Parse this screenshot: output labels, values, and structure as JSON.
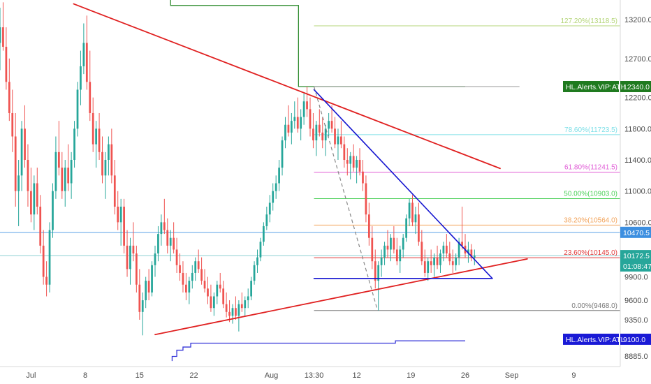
{
  "chart_data": {
    "type": "candlestick",
    "instrument_note": "",
    "y_axis": {
      "range": [
        8750,
        13450
      ],
      "ticks": [
        13200.0,
        12700.0,
        12200.0,
        11800.0,
        11400.0,
        11000.0,
        10600.0,
        9900.0,
        9600.0,
        9350.0,
        8885.0
      ],
      "tick_labels": [
        "13200.0",
        "12700.0",
        "12200.0",
        "11800.0",
        "11400.0",
        "11000.0",
        "10600.0",
        "9900.0",
        "9600.0",
        "9350.0",
        "8885.0"
      ]
    },
    "x_axis": {
      "labels": [
        {
          "text": "Jul",
          "day": 0
        },
        {
          "text": "8",
          "day": 7
        },
        {
          "text": "15",
          "day": 14
        },
        {
          "text": "22",
          "day": 21
        },
        {
          "text": "Aug",
          "day": 31
        },
        {
          "text": "13:30",
          "day": 36.5
        },
        {
          "text": "12",
          "day": 42
        },
        {
          "text": "19",
          "day": 49
        },
        {
          "text": "26",
          "day": 56
        },
        {
          "text": "Sep",
          "day": 62
        },
        {
          "text": "9",
          "day": 70
        }
      ],
      "range": [
        -4,
        76
      ]
    },
    "fibonacci": [
      {
        "label": "127.20%(13118.5)",
        "value": 13118.5,
        "color": "#b5d67a"
      },
      {
        "label": "78.60%(11723.5)",
        "value": 11723.5,
        "color": "#7fe0e8"
      },
      {
        "label": "61.80%(11241.5)",
        "value": 11241.5,
        "color": "#e05cd6"
      },
      {
        "label": "50.00%(10903.0)",
        "value": 10903.0,
        "color": "#4cd05a"
      },
      {
        "label": "38.20%(10564.0)",
        "value": 10564.0,
        "color": "#f2a35a"
      },
      {
        "label": "23.60%(10145.0)",
        "value": 10145.0,
        "color": "#e03a3a"
      },
      {
        "label": "0.00%(9468.0)",
        "value": 9468.0,
        "color": "#787878"
      }
    ],
    "fib_range_days": [
      36.5,
      63
    ],
    "fib_top": {
      "value": 12340,
      "color": "#9a9a9a"
    },
    "price_tags": [
      {
        "label": "HL.Alerts.VIP:ATH",
        "value_text": "12340.0",
        "value": 12340,
        "color": "#1f7a1f"
      },
      {
        "label": "",
        "value_text": "10470.5",
        "value": 10470.5,
        "color": "#3d8fe0"
      },
      {
        "label": "",
        "value_text": "10172.5",
        "value": 10172.5,
        "color": "#26a69a"
      },
      {
        "label": "",
        "value_text": "01:08:47",
        "value": 10040,
        "color": "#26a69a"
      },
      {
        "label": "HL.Alerts.VIP:ATL",
        "value_text": "9100.0",
        "value": 9100,
        "color": "#1a1ad6"
      }
    ],
    "horizontal_lines": [
      {
        "value": 10470.5,
        "color": "#5aa0e6"
      },
      {
        "value": 10172.5,
        "color": "#8ccfd0"
      }
    ],
    "ath_step_line": {
      "color": "#2e8b2e",
      "points": [
        [
          18,
          13480
        ],
        [
          18,
          13380
        ],
        [
          34.5,
          13380
        ],
        [
          34.5,
          12340
        ],
        [
          56,
          12340
        ]
      ]
    },
    "atl_step_line": {
      "color": "#3535d8",
      "points": [
        [
          18.2,
          8820
        ],
        [
          18.2,
          8880
        ],
        [
          18.8,
          8880
        ],
        [
          18.8,
          8960
        ],
        [
          19.6,
          8960
        ],
        [
          19.6,
          9000
        ],
        [
          20.6,
          9000
        ],
        [
          20.6,
          9050
        ],
        [
          47,
          9050
        ],
        [
          47,
          9080
        ],
        [
          56,
          9080
        ]
      ]
    },
    "trendlines": [
      {
        "name": "upper-red",
        "color": "#e02020",
        "width": 1.8,
        "from": [
          5.5,
          13400
        ],
        "to": [
          60.5,
          11290
        ]
      },
      {
        "name": "lower-red",
        "color": "#e02020",
        "width": 1.8,
        "from": [
          16,
          9160
        ],
        "to": [
          64,
          10130
        ]
      },
      {
        "name": "blue-resistance",
        "color": "#1515d0",
        "width": 1.6,
        "from": [
          36.5,
          12300
        ],
        "to": [
          59.5,
          9880
        ]
      },
      {
        "name": "blue-support",
        "color": "#1515d0",
        "width": 1.6,
        "from": [
          36.5,
          9880
        ],
        "to": [
          59.5,
          9880
        ]
      }
    ],
    "dashed_lines": [
      {
        "color": "#888888",
        "from": [
          36.5,
          12340
        ],
        "to": [
          44.7,
          9468
        ]
      }
    ],
    "candles_ohlc_note": "open/high/low/close sampled per bar",
    "candles": [
      [
        -4,
        12900,
        13350,
        12550,
        13100
      ],
      [
        -3.6,
        13100,
        13420,
        12800,
        12850
      ],
      [
        -3.2,
        12850,
        13100,
        12300,
        12400
      ],
      [
        -2.8,
        12400,
        12700,
        11900,
        12000
      ],
      [
        -2.4,
        12000,
        12300,
        11500,
        11700
      ],
      [
        -2.0,
        11700,
        12000,
        10800,
        11000
      ],
      [
        -1.6,
        11000,
        11400,
        10550,
        11200
      ],
      [
        -1.2,
        11200,
        11900,
        11000,
        11800
      ],
      [
        -0.8,
        11800,
        12100,
        11300,
        11400
      ],
      [
        -0.4,
        11400,
        11600,
        10800,
        11000
      ],
      [
        0,
        11000,
        11300,
        10600,
        10700
      ],
      [
        0.4,
        10700,
        11200,
        10500,
        11100
      ],
      [
        0.8,
        11100,
        11300,
        10700,
        10800
      ],
      [
        1.2,
        10800,
        10950,
        10200,
        10300
      ],
      [
        1.6,
        10300,
        10500,
        9800,
        9900
      ],
      [
        2.0,
        9900,
        10100,
        9650,
        9800
      ],
      [
        2.4,
        9800,
        10600,
        9700,
        10500
      ],
      [
        2.8,
        10500,
        11100,
        10400,
        11000
      ],
      [
        3.2,
        11000,
        11700,
        10900,
        11500
      ],
      [
        3.6,
        11500,
        11900,
        11200,
        11300
      ],
      [
        4.0,
        11300,
        11500,
        10900,
        11000
      ],
      [
        4.4,
        11000,
        11400,
        10800,
        11300
      ],
      [
        4.8,
        11300,
        11600,
        11000,
        11100
      ],
      [
        5.2,
        11100,
        11500,
        10900,
        11400
      ],
      [
        5.6,
        11400,
        11900,
        11300,
        11800
      ],
      [
        6.0,
        11800,
        12400,
        11700,
        12300
      ],
      [
        6.4,
        12300,
        12800,
        12100,
        12600
      ],
      [
        6.8,
        12600,
        13150,
        12500,
        12900
      ],
      [
        7.2,
        12900,
        13250,
        12300,
        12400
      ],
      [
        7.6,
        12400,
        12800,
        11900,
        12000
      ],
      [
        8.0,
        12000,
        12200,
        11500,
        11600
      ],
      [
        8.4,
        11600,
        11900,
        11300,
        11800
      ],
      [
        8.8,
        11800,
        12000,
        11400,
        11500
      ],
      [
        9.2,
        11500,
        11700,
        11100,
        11200
      ],
      [
        9.6,
        11200,
        11500,
        10900,
        11400
      ],
      [
        10.0,
        11400,
        11700,
        11200,
        11600
      ],
      [
        10.4,
        11600,
        11800,
        11100,
        11200
      ],
      [
        10.8,
        11200,
        11400,
        10700,
        10800
      ],
      [
        11.2,
        10800,
        11000,
        10500,
        10600
      ],
      [
        11.6,
        10600,
        10900,
        10300,
        10800
      ],
      [
        12.0,
        10800,
        10900,
        10200,
        10300
      ],
      [
        12.4,
        10300,
        10500,
        9900,
        10000
      ],
      [
        12.8,
        10000,
        10400,
        9800,
        10300
      ],
      [
        13.2,
        10300,
        10600,
        10100,
        10200
      ],
      [
        13.6,
        10200,
        10300,
        9700,
        9800
      ],
      [
        14.0,
        9800,
        10000,
        9350,
        9450
      ],
      [
        14.4,
        9450,
        9700,
        9150,
        9600
      ],
      [
        14.8,
        9600,
        9900,
        9500,
        9850
      ],
      [
        15.2,
        9850,
        10000,
        9600,
        9700
      ],
      [
        15.6,
        9700,
        10100,
        9650,
        10050
      ],
      [
        16.0,
        10050,
        10300,
        9900,
        10200
      ],
      [
        16.4,
        10200,
        10550,
        10100,
        10450
      ],
      [
        16.8,
        10450,
        10700,
        10300,
        10600
      ],
      [
        17.2,
        10600,
        10900,
        10450,
        10500
      ],
      [
        17.6,
        10500,
        10650,
        10200,
        10300
      ],
      [
        18.0,
        10300,
        10500,
        10100,
        10400
      ],
      [
        18.4,
        10400,
        10600,
        10200,
        10250
      ],
      [
        18.8,
        10250,
        10400,
        9950,
        10050
      ],
      [
        19.2,
        10050,
        10200,
        9850,
        9950
      ],
      [
        19.6,
        9950,
        10100,
        9700,
        9800
      ],
      [
        20.0,
        9800,
        9950,
        9600,
        9700
      ],
      [
        20.4,
        9700,
        9900,
        9550,
        9850
      ],
      [
        20.8,
        9850,
        10050,
        9750,
        9950
      ],
      [
        21.2,
        9950,
        10150,
        9850,
        10100
      ],
      [
        21.6,
        10100,
        10250,
        9950,
        10000
      ],
      [
        22.0,
        10000,
        10150,
        9800,
        9850
      ],
      [
        22.4,
        9850,
        10000,
        9700,
        9750
      ],
      [
        22.8,
        9750,
        9900,
        9550,
        9650
      ],
      [
        23.2,
        9650,
        9800,
        9450,
        9500
      ],
      [
        23.6,
        9500,
        9700,
        9400,
        9650
      ],
      [
        24.0,
        9650,
        9850,
        9550,
        9800
      ],
      [
        24.4,
        9800,
        9950,
        9700,
        9750
      ],
      [
        24.8,
        9750,
        9850,
        9500,
        9550
      ],
      [
        25.2,
        9550,
        9700,
        9380,
        9450
      ],
      [
        25.6,
        9450,
        9600,
        9320,
        9400
      ],
      [
        26.0,
        9400,
        9550,
        9300,
        9500
      ],
      [
        26.4,
        9500,
        9650,
        9350,
        9400
      ],
      [
        26.8,
        9400,
        9600,
        9200,
        9550
      ],
      [
        27.2,
        9550,
        9700,
        9450,
        9500
      ],
      [
        27.6,
        9500,
        9650,
        9400,
        9600
      ],
      [
        28.0,
        9600,
        9750,
        9500,
        9650
      ],
      [
        28.4,
        9650,
        9900,
        9600,
        9850
      ],
      [
        28.8,
        9850,
        10100,
        9800,
        10050
      ],
      [
        29.2,
        10050,
        10250,
        9950,
        10150
      ],
      [
        29.6,
        10150,
        10400,
        10100,
        10350
      ],
      [
        30.0,
        10350,
        10600,
        10300,
        10550
      ],
      [
        30.4,
        10550,
        10800,
        10500,
        10700
      ],
      [
        30.8,
        10700,
        10950,
        10600,
        10850
      ],
      [
        31.2,
        10850,
        11100,
        10750,
        11000
      ],
      [
        31.6,
        11000,
        11200,
        10900,
        11100
      ],
      [
        32.0,
        11100,
        11400,
        11000,
        11300
      ],
      [
        32.4,
        11300,
        11700,
        11200,
        11650
      ],
      [
        32.8,
        11650,
        11950,
        11550,
        11850
      ],
      [
        33.2,
        11850,
        12100,
        11700,
        11750
      ],
      [
        33.6,
        11750,
        12000,
        11600,
        11900
      ],
      [
        34.0,
        11900,
        12150,
        11800,
        11950
      ],
      [
        34.4,
        11950,
        12200,
        11750,
        11800
      ],
      [
        34.8,
        11800,
        12050,
        11650,
        11950
      ],
      [
        35.2,
        11950,
        12250,
        11850,
        12150
      ],
      [
        35.6,
        12150,
        12340,
        11950,
        12050
      ],
      [
        36.0,
        12050,
        12200,
        11700,
        11800
      ],
      [
        36.4,
        11800,
        12000,
        11550,
        11650
      ],
      [
        36.8,
        11650,
        11900,
        11450,
        11850
      ],
      [
        37.2,
        11850,
        12050,
        11700,
        11750
      ],
      [
        37.6,
        11750,
        11950,
        11550,
        11650
      ],
      [
        38.0,
        11650,
        11850,
        11450,
        11800
      ],
      [
        38.4,
        11800,
        12000,
        11700,
        11900
      ],
      [
        38.8,
        11900,
        12100,
        11750,
        11800
      ],
      [
        39.2,
        11800,
        11950,
        11550,
        11600
      ],
      [
        39.6,
        11600,
        11800,
        11400,
        11700
      ],
      [
        40.0,
        11700,
        11900,
        11550,
        11600
      ],
      [
        40.4,
        11600,
        11700,
        11300,
        11400
      ],
      [
        40.8,
        11400,
        11550,
        11200,
        11350
      ],
      [
        41.2,
        11350,
        11500,
        11150,
        11450
      ],
      [
        41.6,
        11450,
        11600,
        11250,
        11300
      ],
      [
        42.0,
        11300,
        11450,
        11100,
        11400
      ],
      [
        42.4,
        11400,
        11550,
        11200,
        11250
      ],
      [
        42.8,
        11250,
        11400,
        11000,
        11100
      ],
      [
        43.2,
        11100,
        11200,
        10600,
        10700
      ],
      [
        43.6,
        10700,
        10850,
        10300,
        10400
      ],
      [
        44.0,
        10400,
        10550,
        10000,
        10100
      ],
      [
        44.4,
        10100,
        10250,
        9750,
        9850
      ],
      [
        44.8,
        9850,
        10100,
        9468,
        10050
      ],
      [
        45.2,
        10050,
        10250,
        9900,
        10150
      ],
      [
        45.6,
        10150,
        10350,
        10050,
        10300
      ],
      [
        46.0,
        10300,
        10500,
        10150,
        10250
      ],
      [
        46.4,
        10250,
        10450,
        10100,
        10400
      ],
      [
        46.8,
        10400,
        10550,
        10200,
        10250
      ],
      [
        47.2,
        10250,
        10400,
        10050,
        10100
      ],
      [
        47.6,
        10100,
        10300,
        9950,
        10250
      ],
      [
        48.0,
        10250,
        10450,
        10150,
        10400
      ],
      [
        48.4,
        10400,
        10700,
        10350,
        10650
      ],
      [
        48.8,
        10650,
        10900,
        10550,
        10850
      ],
      [
        49.2,
        10850,
        10950,
        10550,
        10600
      ],
      [
        49.6,
        10600,
        10800,
        10450,
        10700
      ],
      [
        50.0,
        10700,
        10850,
        10300,
        10350
      ],
      [
        50.4,
        10350,
        10500,
        10050,
        10100
      ],
      [
        50.8,
        10100,
        10250,
        9900,
        9950
      ],
      [
        51.2,
        9950,
        10150,
        9850,
        10100
      ],
      [
        51.6,
        10100,
        10250,
        9950,
        10050
      ],
      [
        52.0,
        10050,
        10200,
        9900,
        10150
      ],
      [
        52.4,
        10150,
        10300,
        10000,
        10050
      ],
      [
        52.8,
        10050,
        10250,
        9950,
        10200
      ],
      [
        53.2,
        10200,
        10350,
        10100,
        10300
      ],
      [
        53.6,
        10300,
        10450,
        10150,
        10200
      ],
      [
        54.0,
        10200,
        10350,
        10050,
        10100
      ],
      [
        54.4,
        10100,
        10250,
        9950,
        10050
      ],
      [
        54.8,
        10050,
        10200,
        9980,
        10150
      ],
      [
        55.2,
        10150,
        10400,
        10050,
        10350
      ],
      [
        55.6,
        10350,
        10800,
        10250,
        10300
      ],
      [
        56.0,
        10300,
        10450,
        10150,
        10200
      ],
      [
        56.4,
        10200,
        10350,
        10080,
        10250
      ],
      [
        56.8,
        10250,
        10320,
        10100,
        10150
      ],
      [
        57.2,
        10150,
        10250,
        10050,
        10172.5
      ]
    ]
  }
}
